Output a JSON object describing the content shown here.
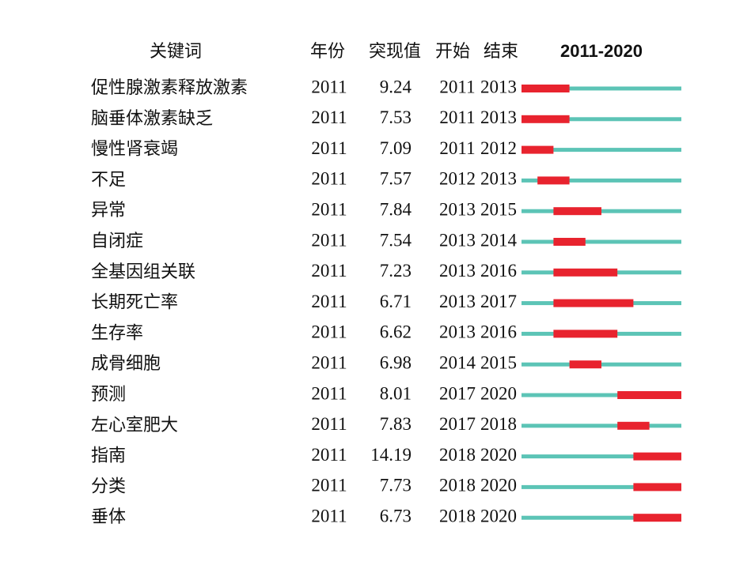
{
  "table": {
    "headers": [
      "关键词",
      "年份",
      "突现值",
      "开始",
      "结束"
    ],
    "timeline": {
      "label": "2011-2020",
      "start": 2011,
      "end": 2020
    },
    "rows": [
      {
        "keyword": "促性腺激素释放激素",
        "year": 2011,
        "strength": 9.24,
        "begin": 2011,
        "end": 2013
      },
      {
        "keyword": "脑垂体激素缺乏",
        "year": 2011,
        "strength": 7.53,
        "begin": 2011,
        "end": 2013
      },
      {
        "keyword": "慢性肾衰竭",
        "year": 2011,
        "strength": 7.09,
        "begin": 2011,
        "end": 2012
      },
      {
        "keyword": "不足",
        "year": 2011,
        "strength": 7.57,
        "begin": 2012,
        "end": 2013
      },
      {
        "keyword": "异常",
        "year": 2011,
        "strength": 7.84,
        "begin": 2013,
        "end": 2015
      },
      {
        "keyword": "自闭症",
        "year": 2011,
        "strength": 7.54,
        "begin": 2013,
        "end": 2014
      },
      {
        "keyword": "全基因组关联",
        "year": 2011,
        "strength": 7.23,
        "begin": 2013,
        "end": 2016
      },
      {
        "keyword": "长期死亡率",
        "year": 2011,
        "strength": 6.71,
        "begin": 2013,
        "end": 2017
      },
      {
        "keyword": "生存率",
        "year": 2011,
        "strength": 6.62,
        "begin": 2013,
        "end": 2016
      },
      {
        "keyword": "成骨细胞",
        "year": 2011,
        "strength": 6.98,
        "begin": 2014,
        "end": 2015
      },
      {
        "keyword": "预测",
        "year": 2011,
        "strength": 8.01,
        "begin": 2017,
        "end": 2020
      },
      {
        "keyword": "左心室肥大",
        "year": 2011,
        "strength": 7.83,
        "begin": 2017,
        "end": 2018
      },
      {
        "keyword": "指南",
        "year": 2011,
        "strength": 14.19,
        "begin": 2018,
        "end": 2020
      },
      {
        "keyword": "分类",
        "year": 2011,
        "strength": 7.73,
        "begin": 2018,
        "end": 2020
      },
      {
        "keyword": "垂体",
        "year": 2011,
        "strength": 6.73,
        "begin": 2018,
        "end": 2020
      }
    ]
  }
}
